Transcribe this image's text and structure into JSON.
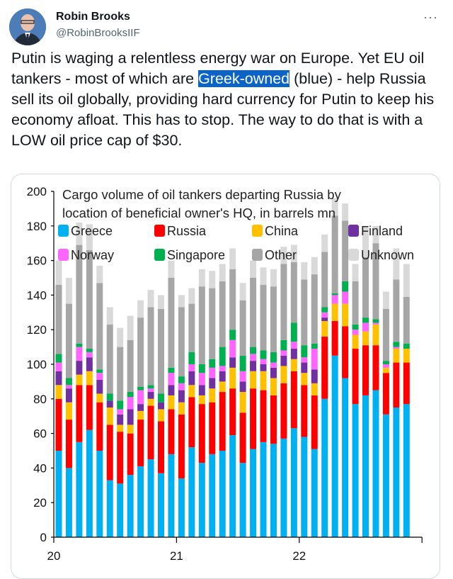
{
  "author": {
    "name": "Robin Brooks",
    "handle": "@RobinBrooksIIF",
    "more_icon": "more-dots-icon"
  },
  "tweet": {
    "text_before": "Putin is waging a relentless energy war on Europe. Yet EU oil tankers - most of which are ",
    "highlight": "Greek-owned",
    "text_after": " (blue) - help Russia sell its oil globally, providing hard currency for Putin to keep his economy afloat. This has to stop. The way to do that is with a LOW oil price cap of $30."
  },
  "chart_data": {
    "type": "bar",
    "stacked": true,
    "title": "Cargo volume of oil tankers departing Russia by location of beneficial owner's HQ, in barrels mn",
    "title_lines": [
      "Cargo volume of oil tankers departing Russia by",
      "location of beneficial owner's HQ, in barrels mn"
    ],
    "xlabel": "",
    "ylabel": "",
    "ylim": [
      0,
      200
    ],
    "yticks": [
      0,
      20,
      40,
      60,
      80,
      100,
      120,
      140,
      160,
      180,
      200
    ],
    "xtick_labels": [
      "20",
      "21",
      "22"
    ],
    "x_periods": "monthly, Jan 2020 - Nov 2022",
    "legend_position": "top",
    "grid": false,
    "series": [
      {
        "name": "Greece",
        "color": "#00b0f0",
        "values": [
          50,
          40,
          55,
          62,
          50,
          33,
          31,
          36,
          41,
          45,
          37,
          48,
          34,
          52,
          43,
          48,
          50,
          59,
          43,
          51,
          55,
          54,
          57,
          63,
          58,
          51,
          80,
          105,
          92,
          77,
          82,
          85,
          71,
          75,
          77
        ]
      },
      {
        "name": "Russia",
        "color": "#ff0000",
        "values": [
          30,
          28,
          33,
          26,
          28,
          32,
          30,
          24,
          27,
          31,
          30,
          26,
          37,
          29,
          34,
          30,
          34,
          27,
          29,
          35,
          30,
          28,
          32,
          33,
          30,
          31,
          36,
          20,
          30,
          32,
          29,
          26,
          24,
          26,
          24
        ]
      },
      {
        "name": "China",
        "color": "#ffc000",
        "values": [
          8,
          10,
          6,
          8,
          5,
          10,
          4,
          5,
          5,
          4,
          7,
          8,
          7,
          7,
          5,
          8,
          6,
          12,
          12,
          10,
          11,
          10,
          10,
          7,
          7,
          7,
          9,
          10,
          13,
          8,
          8,
          12,
          3,
          8,
          8
        ]
      },
      {
        "name": "Finland",
        "color": "#7030a0",
        "values": [
          8,
          8,
          8,
          8,
          8,
          4,
          6,
          9,
          4,
          4,
          4,
          6,
          7,
          8,
          6,
          6,
          6,
          6,
          6,
          6,
          4,
          6,
          6,
          6,
          6,
          8,
          2,
          0,
          0,
          0,
          0,
          0,
          0,
          0,
          0
        ]
      },
      {
        "name": "Norway",
        "color": "#ff66ff",
        "values": [
          5,
          2,
          8,
          3,
          4,
          0,
          3,
          7,
          8,
          2,
          0,
          7,
          4,
          4,
          7,
          6,
          3,
          10,
          6,
          4,
          3,
          3,
          3,
          4,
          3,
          12,
          3,
          5,
          7,
          3,
          5,
          1,
          2,
          1,
          0
        ]
      },
      {
        "name": "Singapore",
        "color": "#00b050",
        "values": [
          5,
          4,
          2,
          2,
          2,
          4,
          5,
          3,
          2,
          2,
          5,
          3,
          4,
          7,
          5,
          5,
          11,
          6,
          9,
          4,
          5,
          6,
          6,
          11,
          7,
          3,
          3,
          1,
          6,
          3,
          3,
          2,
          2,
          3,
          3
        ]
      },
      {
        "name": "Other",
        "color": "#a6a6a6",
        "values": [
          40,
          43,
          57,
          57,
          50,
          40,
          31,
          30,
          40,
          45,
          49,
          52,
          40,
          28,
          45,
          41,
          38,
          35,
          32,
          40,
          38,
          38,
          44,
          35,
          38,
          40,
          32,
          45,
          35,
          25,
          35,
          44,
          30,
          36,
          27
        ]
      },
      {
        "name": "Unknown",
        "color": "#d9d9d9",
        "values": [
          14,
          15,
          13,
          15,
          10,
          10,
          11,
          14,
          10,
          10,
          8,
          10,
          7,
          9,
          10,
          10,
          10,
          12,
          10,
          10,
          10,
          10,
          10,
          10,
          10,
          10,
          10,
          10,
          10,
          10,
          18,
          10,
          10,
          18,
          19
        ]
      }
    ]
  }
}
